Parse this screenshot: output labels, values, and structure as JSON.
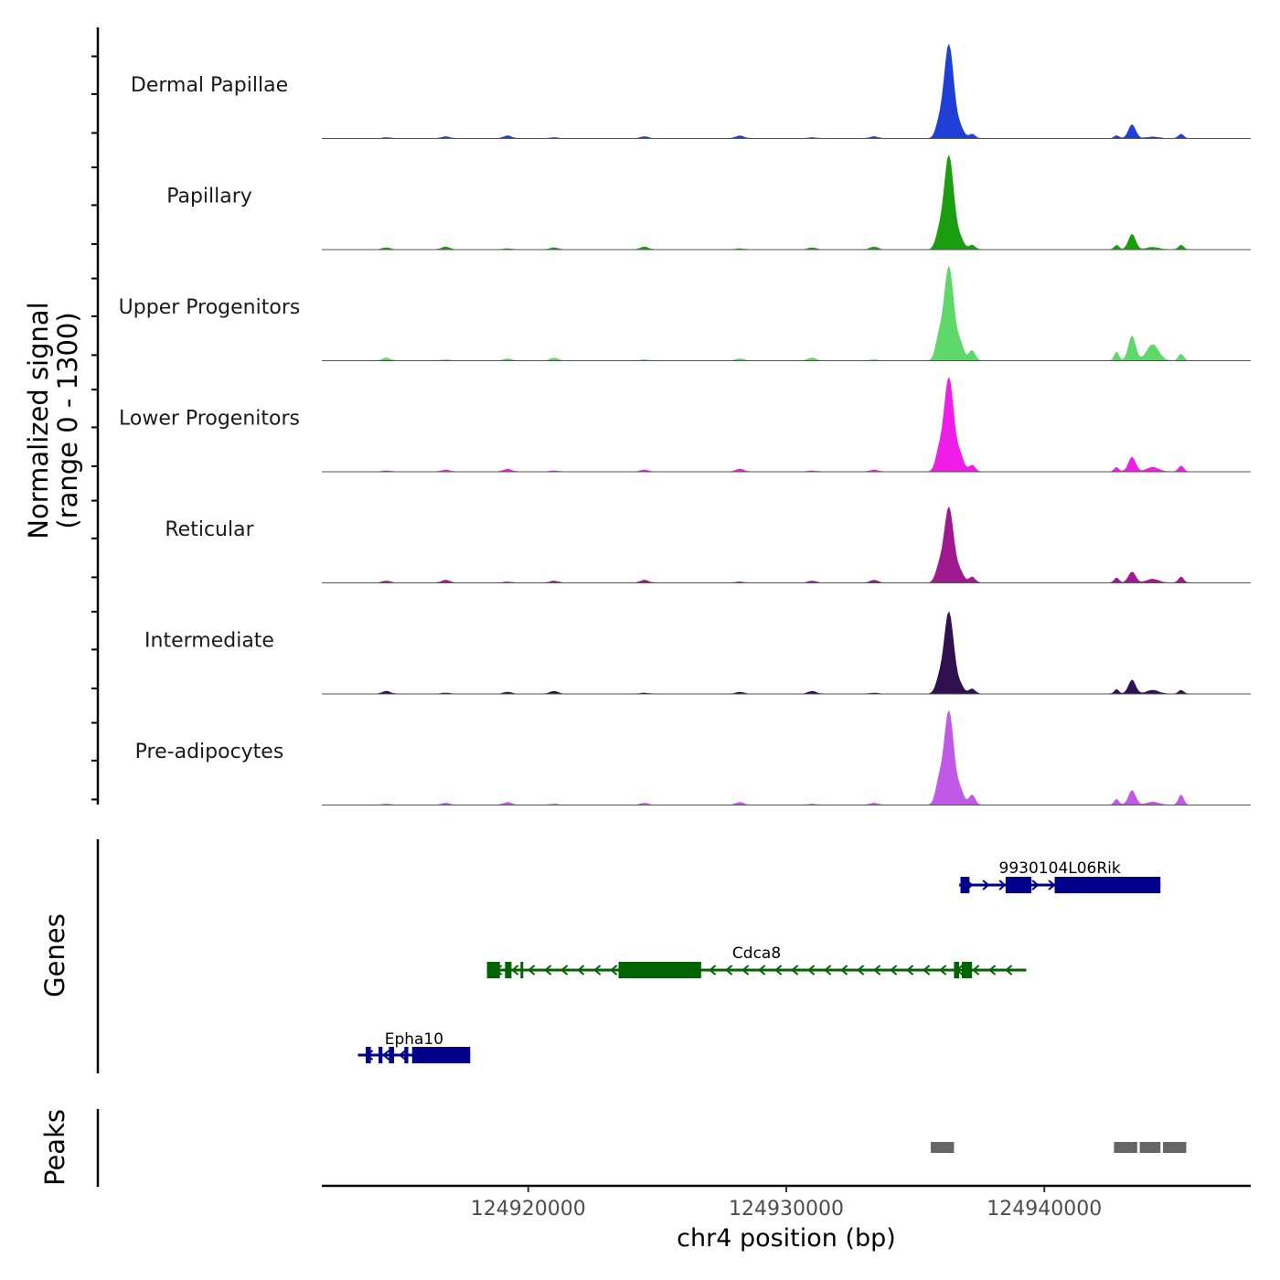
{
  "chart_data": {
    "type": "genome-browser",
    "title": "",
    "xlabel": "chr4 position (bp)",
    "xlim": [
      124912000,
      124948000
    ],
    "x_ticks": [
      "124920000",
      "124930000",
      "124940000"
    ],
    "x_tick_values": [
      124920000,
      124930000,
      124940000
    ],
    "coverage": {
      "ylabel_line1": "Normalized signal",
      "ylabel_line2": "(range 0 - 1300)",
      "ylim": [
        0,
        1300
      ],
      "peak_positions": [
        124935900,
        124936300,
        124936750,
        124937200,
        124942800,
        124943400,
        124944200,
        124945300
      ],
      "tracks": [
        {
          "name": "Dermal Papillae",
          "color": "#1f3fd6",
          "values": [
            160,
            1300,
            130,
            60,
            40,
            190,
            20,
            60
          ]
        },
        {
          "name": "Papillary",
          "color": "#1a9e0f",
          "values": [
            180,
            1300,
            130,
            60,
            60,
            210,
            30,
            60
          ]
        },
        {
          "name": "Upper Progenitors",
          "color": "#5fd86a",
          "values": [
            260,
            1300,
            210,
            140,
            120,
            340,
            220,
            90
          ]
        },
        {
          "name": "Lower Progenitors",
          "color": "#ee1ee8",
          "values": [
            220,
            1300,
            200,
            90,
            60,
            200,
            60,
            80
          ]
        },
        {
          "name": "Reticular",
          "color": "#a0198f",
          "values": [
            170,
            1040,
            130,
            80,
            70,
            150,
            50,
            80
          ]
        },
        {
          "name": "Intermediate",
          "color": "#30104f",
          "values": [
            150,
            1130,
            100,
            70,
            60,
            190,
            50,
            50
          ]
        },
        {
          "name": "Pre-adipocytes",
          "color": "#c05ae6",
          "values": [
            260,
            1300,
            180,
            140,
            80,
            200,
            40,
            140
          ]
        }
      ]
    },
    "genes": {
      "ylabel": "Genes",
      "items": [
        {
          "name": "9930104L06Rik",
          "color": "#00008b",
          "strand": "+",
          "start": 124936700,
          "end": 124944500,
          "exons": [
            [
              124936750,
              124937100
            ],
            [
              124938500,
              124939500
            ],
            [
              124940400,
              124944500
            ]
          ]
        },
        {
          "name": "Cdca8",
          "color": "#006400",
          "strand": "-",
          "start": 124918400,
          "end": 124939300,
          "exons": [
            [
              124918400,
              124918900
            ],
            [
              124919100,
              124919350
            ],
            [
              124919700,
              124919800
            ],
            [
              124923500,
              124926700
            ],
            [
              124936500,
              124936700
            ],
            [
              124936800,
              124937200
            ]
          ]
        },
        {
          "name": "Epha10",
          "color": "#00008b",
          "strand": "-",
          "start": 124913400,
          "end": 124917750,
          "exons": [
            [
              124913700,
              124913900
            ],
            [
              124914200,
              124914350
            ],
            [
              124914600,
              124914800
            ],
            [
              124915200,
              124915350
            ],
            [
              124915500,
              124917750
            ]
          ]
        }
      ]
    },
    "peaks": {
      "ylabel": "Peaks",
      "color": "#666666",
      "regions": [
        [
          124935600,
          124936500
        ],
        [
          124942700,
          124943600
        ],
        [
          124943700,
          124944500
        ],
        [
          124944600,
          124945500
        ]
      ]
    }
  }
}
